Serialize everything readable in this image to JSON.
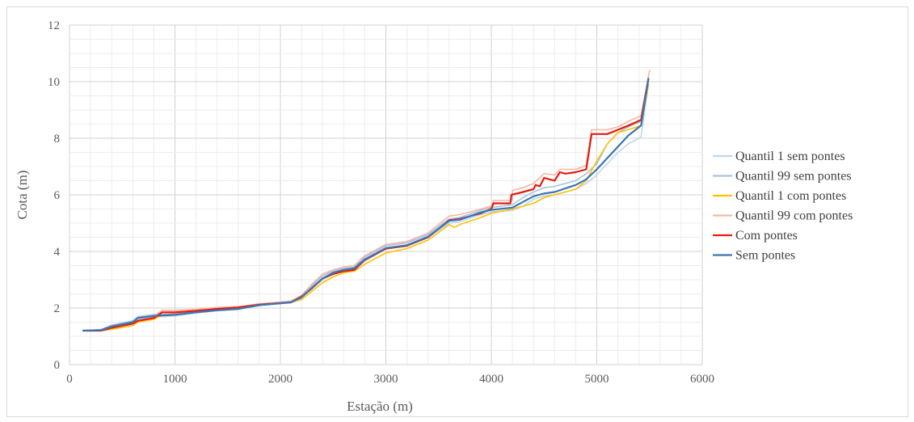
{
  "chart_data": {
    "type": "line",
    "title": "",
    "xlabel": "Estação (m)",
    "ylabel": "Cota (m)",
    "xlim": [
      0,
      6000
    ],
    "ylim": [
      0,
      12
    ],
    "xticks": [
      0,
      1000,
      2000,
      3000,
      4000,
      5000,
      6000
    ],
    "yticks": [
      0,
      2,
      4,
      6,
      8,
      10,
      12
    ],
    "grid": "major and minor",
    "legend_position": "right",
    "series": [
      {
        "name": "Quantil 1 sem pontes",
        "color": "#bdd7ee",
        "points": [
          [
            130,
            1.2
          ],
          [
            300,
            1.22
          ],
          [
            400,
            1.32
          ],
          [
            600,
            1.45
          ],
          [
            650,
            1.6
          ],
          [
            800,
            1.68
          ],
          [
            1000,
            1.72
          ],
          [
            1200,
            1.82
          ],
          [
            1400,
            1.9
          ],
          [
            1600,
            1.95
          ],
          [
            1800,
            2.1
          ],
          [
            2100,
            2.2
          ],
          [
            2200,
            2.35
          ],
          [
            2300,
            2.7
          ],
          [
            2400,
            3.0
          ],
          [
            2500,
            3.2
          ],
          [
            2600,
            3.3
          ],
          [
            2700,
            3.35
          ],
          [
            2800,
            3.65
          ],
          [
            3000,
            4.1
          ],
          [
            3200,
            4.2
          ],
          [
            3400,
            4.5
          ],
          [
            3600,
            5.0
          ],
          [
            3700,
            5.05
          ],
          [
            3900,
            5.3
          ],
          [
            4000,
            5.4
          ],
          [
            4200,
            5.45
          ],
          [
            4300,
            5.6
          ],
          [
            4400,
            5.85
          ],
          [
            4500,
            5.95
          ],
          [
            4600,
            6.0
          ],
          [
            4800,
            6.2
          ],
          [
            4900,
            6.4
          ],
          [
            5000,
            6.7
          ],
          [
            5100,
            7.1
          ],
          [
            5200,
            7.5
          ],
          [
            5300,
            7.8
          ],
          [
            5420,
            8.05
          ],
          [
            5490,
            9.9
          ]
        ]
      },
      {
        "name": "Quantil 99 sem pontes",
        "color": "#a6c4e0",
        "points": [
          [
            130,
            1.2
          ],
          [
            300,
            1.24
          ],
          [
            400,
            1.4
          ],
          [
            600,
            1.55
          ],
          [
            650,
            1.7
          ],
          [
            800,
            1.77
          ],
          [
            1000,
            1.8
          ],
          [
            1200,
            1.88
          ],
          [
            1400,
            1.95
          ],
          [
            1600,
            2.0
          ],
          [
            1800,
            2.12
          ],
          [
            2100,
            2.25
          ],
          [
            2200,
            2.45
          ],
          [
            2300,
            2.8
          ],
          [
            2400,
            3.15
          ],
          [
            2500,
            3.3
          ],
          [
            2600,
            3.4
          ],
          [
            2700,
            3.45
          ],
          [
            2800,
            3.8
          ],
          [
            3000,
            4.2
          ],
          [
            3200,
            4.3
          ],
          [
            3400,
            4.6
          ],
          [
            3600,
            5.15
          ],
          [
            3700,
            5.2
          ],
          [
            3900,
            5.45
          ],
          [
            4000,
            5.55
          ],
          [
            4200,
            5.65
          ],
          [
            4300,
            5.9
          ],
          [
            4400,
            6.1
          ],
          [
            4500,
            6.25
          ],
          [
            4600,
            6.3
          ],
          [
            4800,
            6.5
          ],
          [
            4900,
            6.75
          ],
          [
            5000,
            7.1
          ],
          [
            5100,
            7.8
          ],
          [
            5200,
            8.2
          ],
          [
            5300,
            8.4
          ],
          [
            5420,
            8.6
          ],
          [
            5490,
            10.2
          ]
        ]
      },
      {
        "name": "Quantil 1 com pontes",
        "color": "#ffc000",
        "points": [
          [
            130,
            1.2
          ],
          [
            300,
            1.2
          ],
          [
            400,
            1.25
          ],
          [
            600,
            1.38
          ],
          [
            650,
            1.5
          ],
          [
            800,
            1.6
          ],
          [
            880,
            1.75
          ],
          [
            1000,
            1.78
          ],
          [
            1200,
            1.85
          ],
          [
            1400,
            1.92
          ],
          [
            1600,
            1.97
          ],
          [
            1800,
            2.1
          ],
          [
            2100,
            2.2
          ],
          [
            2200,
            2.3
          ],
          [
            2300,
            2.6
          ],
          [
            2400,
            2.9
          ],
          [
            2500,
            3.1
          ],
          [
            2600,
            3.25
          ],
          [
            2700,
            3.3
          ],
          [
            2800,
            3.55
          ],
          [
            3000,
            3.95
          ],
          [
            3200,
            4.1
          ],
          [
            3400,
            4.4
          ],
          [
            3600,
            4.95
          ],
          [
            3650,
            4.85
          ],
          [
            3700,
            4.95
          ],
          [
            3900,
            5.2
          ],
          [
            4000,
            5.35
          ],
          [
            4200,
            5.5
          ],
          [
            4300,
            5.6
          ],
          [
            4400,
            5.7
          ],
          [
            4500,
            5.9
          ],
          [
            4600,
            6.0
          ],
          [
            4800,
            6.2
          ],
          [
            4900,
            6.5
          ],
          [
            5000,
            7.2
          ],
          [
            5100,
            7.8
          ],
          [
            5200,
            8.2
          ],
          [
            5300,
            8.3
          ],
          [
            5420,
            8.45
          ],
          [
            5490,
            9.9
          ]
        ]
      },
      {
        "name": "Quantil 99 com pontes",
        "color": "#f4b6a4",
        "points": [
          [
            130,
            1.2
          ],
          [
            300,
            1.23
          ],
          [
            400,
            1.35
          ],
          [
            600,
            1.5
          ],
          [
            650,
            1.65
          ],
          [
            800,
            1.72
          ],
          [
            880,
            1.92
          ],
          [
            1000,
            1.92
          ],
          [
            1200,
            1.95
          ],
          [
            1400,
            2.02
          ],
          [
            1600,
            2.05
          ],
          [
            1800,
            2.15
          ],
          [
            2100,
            2.25
          ],
          [
            2200,
            2.45
          ],
          [
            2300,
            2.85
          ],
          [
            2400,
            3.2
          ],
          [
            2500,
            3.35
          ],
          [
            2600,
            3.45
          ],
          [
            2700,
            3.5
          ],
          [
            2800,
            3.85
          ],
          [
            3000,
            4.25
          ],
          [
            3200,
            4.35
          ],
          [
            3400,
            4.65
          ],
          [
            3600,
            5.25
          ],
          [
            3700,
            5.3
          ],
          [
            3900,
            5.5
          ],
          [
            4000,
            5.6
          ],
          [
            4020,
            5.8
          ],
          [
            4200,
            5.8
          ],
          [
            4200,
            6.15
          ],
          [
            4300,
            6.25
          ],
          [
            4400,
            6.4
          ],
          [
            4500,
            6.75
          ],
          [
            4600,
            6.7
          ],
          [
            4650,
            6.9
          ],
          [
            4800,
            6.9
          ],
          [
            4900,
            7.05
          ],
          [
            4950,
            8.3
          ],
          [
            5100,
            8.3
          ],
          [
            5200,
            8.4
          ],
          [
            5300,
            8.6
          ],
          [
            5420,
            8.8
          ],
          [
            5500,
            10.4
          ]
        ]
      },
      {
        "name": "Com pontes",
        "color": "#e8190e",
        "points": [
          [
            130,
            1.2
          ],
          [
            300,
            1.2
          ],
          [
            400,
            1.3
          ],
          [
            600,
            1.45
          ],
          [
            650,
            1.55
          ],
          [
            800,
            1.65
          ],
          [
            880,
            1.85
          ],
          [
            1000,
            1.85
          ],
          [
            1200,
            1.9
          ],
          [
            1400,
            1.97
          ],
          [
            1600,
            2.02
          ],
          [
            1800,
            2.12
          ],
          [
            2100,
            2.2
          ],
          [
            2200,
            2.4
          ],
          [
            2300,
            2.7
          ],
          [
            2400,
            3.05
          ],
          [
            2500,
            3.2
          ],
          [
            2600,
            3.3
          ],
          [
            2700,
            3.35
          ],
          [
            2800,
            3.7
          ],
          [
            3000,
            4.1
          ],
          [
            3200,
            4.2
          ],
          [
            3400,
            4.5
          ],
          [
            3600,
            5.1
          ],
          [
            3700,
            5.15
          ],
          [
            3900,
            5.35
          ],
          [
            4000,
            5.5
          ],
          [
            4020,
            5.7
          ],
          [
            4180,
            5.7
          ],
          [
            4190,
            6.0
          ],
          [
            4300,
            6.1
          ],
          [
            4400,
            6.2
          ],
          [
            4420,
            6.35
          ],
          [
            4460,
            6.3
          ],
          [
            4500,
            6.6
          ],
          [
            4600,
            6.5
          ],
          [
            4650,
            6.8
          ],
          [
            4700,
            6.75
          ],
          [
            4800,
            6.8
          ],
          [
            4900,
            6.9
          ],
          [
            4950,
            8.15
          ],
          [
            5100,
            8.15
          ],
          [
            5200,
            8.3
          ],
          [
            5300,
            8.45
          ],
          [
            5420,
            8.65
          ],
          [
            5490,
            10.1
          ]
        ]
      },
      {
        "name": "Sem pontes",
        "color": "#3b75b2",
        "points": [
          [
            130,
            1.2
          ],
          [
            300,
            1.22
          ],
          [
            400,
            1.35
          ],
          [
            600,
            1.5
          ],
          [
            650,
            1.65
          ],
          [
            800,
            1.72
          ],
          [
            1000,
            1.76
          ],
          [
            1200,
            1.85
          ],
          [
            1400,
            1.92
          ],
          [
            1600,
            1.97
          ],
          [
            1800,
            2.1
          ],
          [
            2100,
            2.2
          ],
          [
            2200,
            2.38
          ],
          [
            2300,
            2.72
          ],
          [
            2400,
            3.05
          ],
          [
            2500,
            3.25
          ],
          [
            2600,
            3.35
          ],
          [
            2700,
            3.4
          ],
          [
            2800,
            3.72
          ],
          [
            3000,
            4.12
          ],
          [
            3200,
            4.22
          ],
          [
            3400,
            4.52
          ],
          [
            3600,
            5.08
          ],
          [
            3700,
            5.12
          ],
          [
            3900,
            5.38
          ],
          [
            4000,
            5.47
          ],
          [
            4200,
            5.55
          ],
          [
            4300,
            5.75
          ],
          [
            4400,
            5.95
          ],
          [
            4500,
            6.05
          ],
          [
            4600,
            6.1
          ],
          [
            4800,
            6.35
          ],
          [
            4900,
            6.55
          ],
          [
            5000,
            6.9
          ],
          [
            5100,
            7.3
          ],
          [
            5200,
            7.7
          ],
          [
            5300,
            8.1
          ],
          [
            5420,
            8.45
          ],
          [
            5490,
            10.1
          ]
        ]
      }
    ]
  }
}
